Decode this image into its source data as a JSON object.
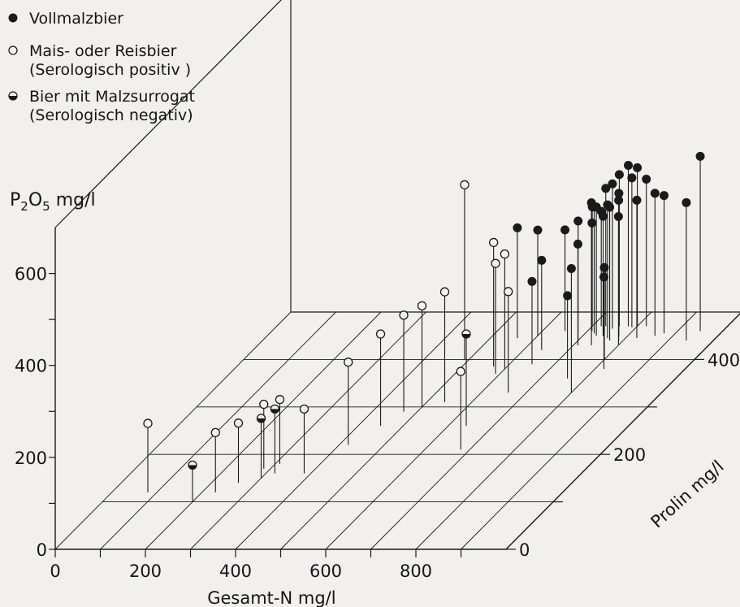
{
  "chart_data": {
    "type": "scatter",
    "subtype": "3d-stem",
    "title": "",
    "legend": {
      "placement": "top-left",
      "entries": [
        {
          "marker": "filled",
          "label": "Vollmalzbier"
        },
        {
          "marker": "open",
          "label": "Mais- oder Reisbier",
          "note": "(Serologisch positiv )"
        },
        {
          "marker": "half",
          "label": "Bier mit Malzsurrogat",
          "note": "(Serologisch negativ)"
        }
      ]
    },
    "axes": {
      "x": {
        "label": "Gesamt-N mg/l",
        "range": [
          0,
          1000
        ],
        "ticks": [
          0,
          200,
          400,
          600,
          800
        ]
      },
      "y": {
        "label": "Prolin mg/l",
        "range": [
          0,
          500
        ],
        "ticks": [
          0,
          200,
          400
        ]
      },
      "z": {
        "label_main": "P",
        "label_sub": "2",
        "label_mid": "O",
        "label_sub2": "5",
        "label_unit": " mg/l",
        "range": [
          0,
          700
        ],
        "ticks": [
          0,
          200,
          400,
          600
        ]
      }
    },
    "grid": true,
    "series": [
      {
        "name": "Vollmalzbier",
        "marker": "filled",
        "points": [
          {
            "x": 560,
            "y": 445,
            "z": 240
          },
          {
            "x": 600,
            "y": 450,
            "z": 230
          },
          {
            "x": 650,
            "y": 460,
            "z": 220
          },
          {
            "x": 640,
            "y": 420,
            "z": 195
          },
          {
            "x": 650,
            "y": 390,
            "z": 180
          },
          {
            "x": 700,
            "y": 470,
            "z": 260
          },
          {
            "x": 730,
            "y": 470,
            "z": 300
          },
          {
            "x": 750,
            "y": 465,
            "z": 315
          },
          {
            "x": 760,
            "y": 470,
            "z": 330
          },
          {
            "x": 780,
            "y": 470,
            "z": 350
          },
          {
            "x": 790,
            "y": 468,
            "z": 325
          },
          {
            "x": 800,
            "y": 470,
            "z": 345
          },
          {
            "x": 730,
            "y": 450,
            "z": 280
          },
          {
            "x": 720,
            "y": 455,
            "z": 275
          },
          {
            "x": 700,
            "y": 440,
            "z": 260
          },
          {
            "x": 740,
            "y": 430,
            "z": 310
          },
          {
            "x": 820,
            "y": 470,
            "z": 320
          },
          {
            "x": 720,
            "y": 470,
            "z": 250
          },
          {
            "x": 710,
            "y": 460,
            "z": 235
          },
          {
            "x": 710,
            "y": 430,
            "z": 220
          },
          {
            "x": 780,
            "y": 450,
            "z": 310
          },
          {
            "x": 800,
            "y": 430,
            "z": 280
          },
          {
            "x": 770,
            "y": 440,
            "z": 290
          },
          {
            "x": 790,
            "y": 440,
            "z": 305
          },
          {
            "x": 760,
            "y": 445,
            "z": 290
          },
          {
            "x": 745,
            "y": 450,
            "z": 260
          },
          {
            "x": 825,
            "y": 445,
            "z": 300
          },
          {
            "x": 860,
            "y": 450,
            "z": 310
          },
          {
            "x": 875,
            "y": 455,
            "z": 300
          },
          {
            "x": 950,
            "y": 460,
            "z": 380
          },
          {
            "x": 940,
            "y": 440,
            "z": 300
          },
          {
            "x": 800,
            "y": 400,
            "z": 200
          },
          {
            "x": 760,
            "y": 360,
            "z": 180
          },
          {
            "x": 820,
            "y": 380,
            "z": 200
          },
          {
            "x": 800,
            "y": 330,
            "z": 270
          }
        ]
      },
      {
        "name": "Mais- oder Reisbier (Serologisch positiv )",
        "marker": "open",
        "points": [
          {
            "x": 490,
            "y": 400,
            "z": 380
          },
          {
            "x": 570,
            "y": 385,
            "z": 270
          },
          {
            "x": 600,
            "y": 380,
            "z": 250
          },
          {
            "x": 590,
            "y": 370,
            "z": 240
          },
          {
            "x": 660,
            "y": 330,
            "z": 220
          },
          {
            "x": 540,
            "y": 310,
            "z": 240
          },
          {
            "x": 500,
            "y": 300,
            "z": 220
          },
          {
            "x": 470,
            "y": 290,
            "z": 210
          },
          {
            "x": 450,
            "y": 260,
            "z": 200
          },
          {
            "x": 420,
            "y": 220,
            "z": 180
          },
          {
            "x": 680,
            "y": 210,
            "z": 170
          },
          {
            "x": 310,
            "y": 180,
            "z": 140
          },
          {
            "x": 285,
            "y": 170,
            "z": 140
          },
          {
            "x": 385,
            "y": 160,
            "z": 140
          },
          {
            "x": 260,
            "y": 140,
            "z": 130
          },
          {
            "x": 230,
            "y": 120,
            "z": 130
          },
          {
            "x": 80,
            "y": 120,
            "z": 150
          }
        ]
      },
      {
        "name": "Bier mit Malzsurrogat (Serologisch negativ)",
        "marker": "half",
        "points": [
          {
            "x": 640,
            "y": 260,
            "z": 200
          },
          {
            "x": 320,
            "y": 160,
            "z": 140
          },
          {
            "x": 300,
            "y": 150,
            "z": 130
          },
          {
            "x": 200,
            "y": 100,
            "z": 80
          }
        ]
      }
    ]
  }
}
